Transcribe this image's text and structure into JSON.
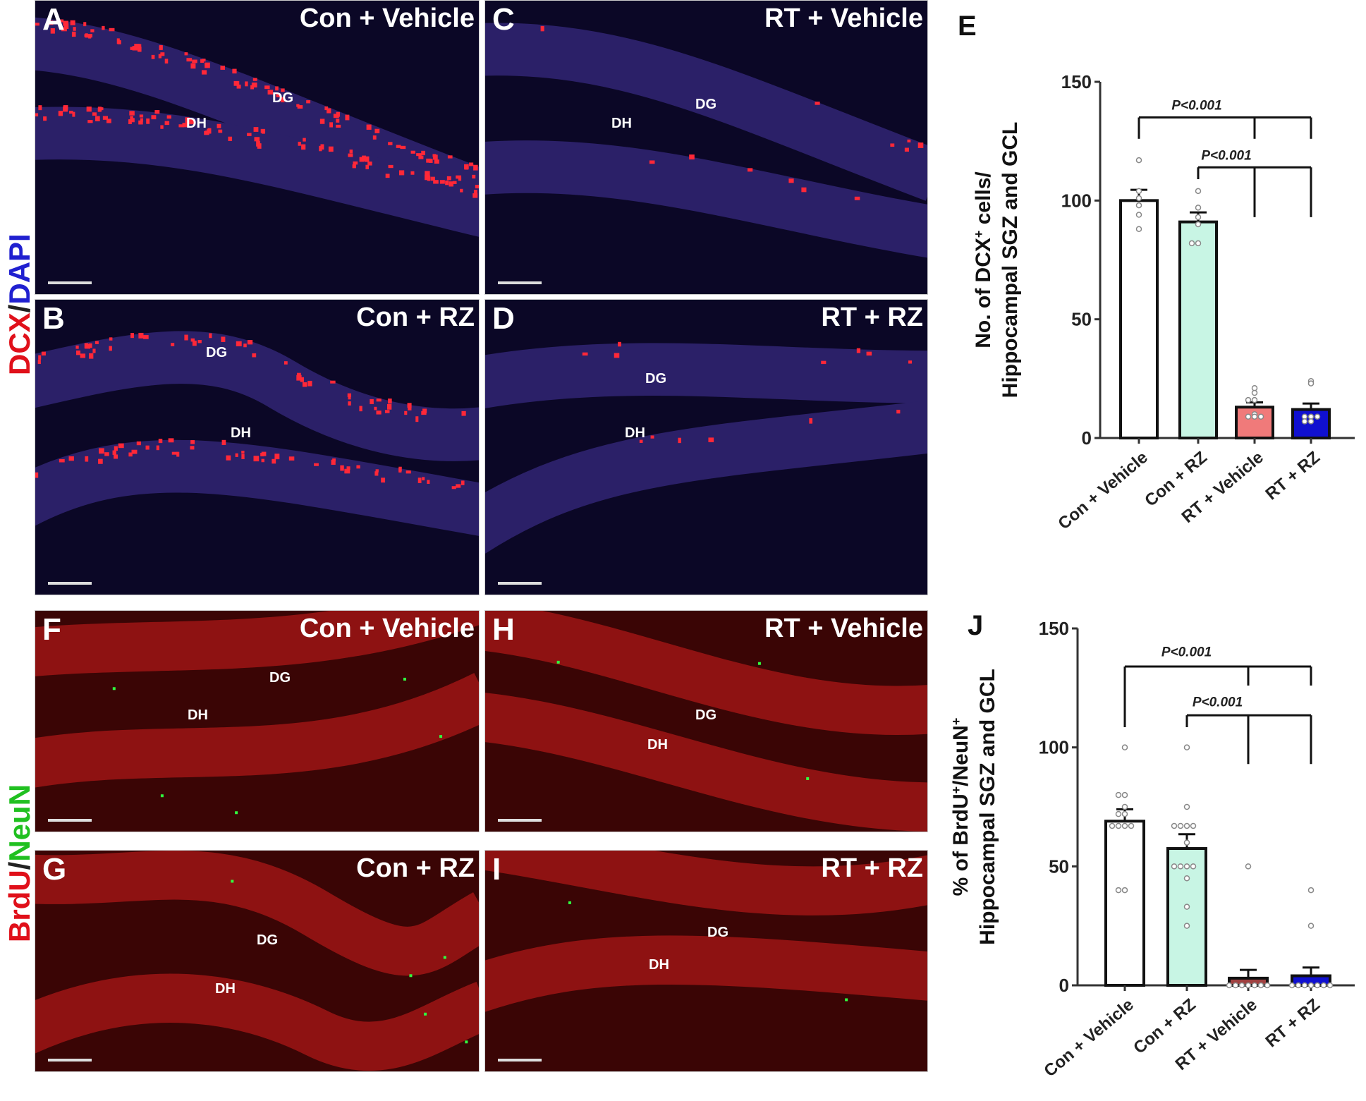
{
  "stain_labels": {
    "top": {
      "a": "DCX",
      "sep": "/",
      "b": "DAPI"
    },
    "bottom": {
      "a": "BrdU",
      "sep": "/",
      "b": "NeuN"
    }
  },
  "panels": {
    "A": {
      "letter": "A",
      "title": "Con + Vehicle",
      "dg": "DG",
      "dh": "DH"
    },
    "B": {
      "letter": "B",
      "title": "Con + RZ",
      "dg": "DG",
      "dh": "DH"
    },
    "C": {
      "letter": "C",
      "title": "RT + Vehicle",
      "dg": "DG",
      "dh": "DH"
    },
    "D": {
      "letter": "D",
      "title": "RT + RZ",
      "dg": "DG",
      "dh": "DH"
    },
    "F": {
      "letter": "F",
      "title": "Con + Vehicle",
      "dg": "DG",
      "dh": "DH"
    },
    "G": {
      "letter": "G",
      "title": "Con + RZ",
      "dg": "DG",
      "dh": "DH"
    },
    "H": {
      "letter": "H",
      "title": "RT + Vehicle",
      "dg": "DG",
      "dh": "DH"
    },
    "I": {
      "letter": "I",
      "title": "RT + RZ",
      "dg": "DG",
      "dh": "DH"
    }
  },
  "chart_data": [
    {
      "panel": "E",
      "type": "bar",
      "ylabel_line1": "No. of DCX",
      "ylabel_sup": "+",
      "ylabel_line1_end": " cells/",
      "ylabel_line2": "Hippocampal SGZ and GCL",
      "ylim": [
        0,
        150
      ],
      "yticks": [
        0,
        50,
        100,
        150
      ],
      "categories": [
        "Con + Vehicle",
        "Con + RZ",
        "RT + Vehicle",
        "RT + RZ"
      ],
      "colors": [
        "#ffffff",
        "#c8f5e4",
        "#f07a7a",
        "#1010d0"
      ],
      "values": [
        100,
        91,
        13,
        12
      ],
      "sem": [
        4.5,
        4,
        2,
        2.5
      ],
      "points": [
        [
          117,
          104,
          101,
          98,
          94,
          88
        ],
        [
          104,
          97,
          93,
          90,
          82,
          82
        ],
        [
          21,
          19,
          16,
          16,
          10,
          9,
          9,
          9
        ],
        [
          24,
          23,
          9,
          9,
          9,
          7,
          7
        ]
      ],
      "comparisons": [
        {
          "label": "P<0.001",
          "from": 0,
          "to": [
            2,
            3
          ],
          "y": 135,
          "label_y": 140
        },
        {
          "label": "P<0.001",
          "from": 1,
          "to": [
            2,
            3
          ],
          "y": 114,
          "label_y": 119
        }
      ]
    },
    {
      "panel": "J",
      "type": "bar",
      "ylabel_line1": "% of BrdU",
      "ylabel_sup": "+",
      "ylabel_line1_mid": "/NeuN",
      "ylabel_sup2": "+",
      "ylabel_line2": "Hippocampal SGZ and GCL",
      "ylim": [
        0,
        150
      ],
      "yticks": [
        0,
        50,
        100,
        150
      ],
      "categories": [
        "Con + Vehicle",
        "Con + RZ",
        "RT + Vehicle",
        "RT + RZ"
      ],
      "colors": [
        "#ffffff",
        "#c8f5e4",
        "#a04040",
        "#1010d0"
      ],
      "values": [
        69,
        57.5,
        3,
        4
      ],
      "sem": [
        5,
        6,
        3.5,
        3.5
      ],
      "points": [
        [
          100,
          80,
          80,
          75,
          72,
          72,
          67,
          67,
          67,
          67,
          40,
          40
        ],
        [
          100,
          75,
          67,
          67,
          67,
          67,
          60,
          50,
          50,
          50,
          50,
          45,
          33,
          25
        ],
        [
          50,
          0,
          0,
          0,
          0,
          0,
          0,
          0
        ],
        [
          40,
          25,
          0,
          0,
          0,
          0,
          0,
          0,
          0
        ]
      ],
      "comparisons": [
        {
          "label": "P<0.001",
          "from": 0,
          "to": [
            2,
            3
          ],
          "y": 134,
          "label_y": 140
        },
        {
          "label": "P<0.001",
          "from": 1,
          "to": [
            2,
            3
          ],
          "y": 113.5,
          "label_y": 119
        }
      ]
    }
  ]
}
